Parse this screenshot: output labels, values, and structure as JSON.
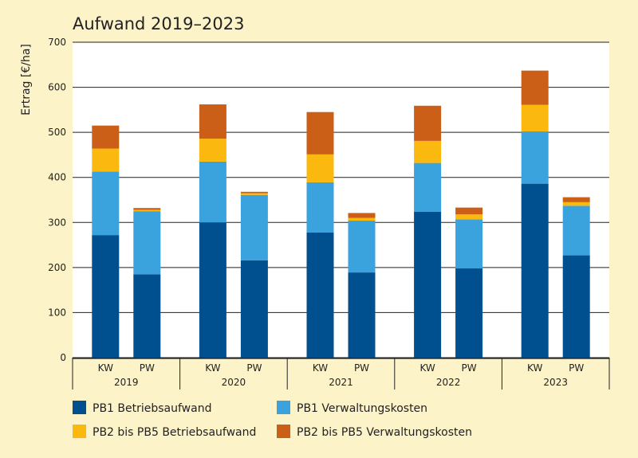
{
  "chart_data": {
    "type": "bar",
    "stacked": true,
    "title": "Aufwand 2019–2023",
    "ylabel": "Ertrag [€/ha]",
    "xlabel": "",
    "ylim": [
      0,
      700
    ],
    "yticks": [
      0,
      100,
      200,
      300,
      400,
      500,
      600,
      700
    ],
    "grid": true,
    "legend_position": "bottom",
    "groups": [
      "2019",
      "2020",
      "2021",
      "2022",
      "2023"
    ],
    "subcategories": [
      "KW",
      "PW"
    ],
    "series": [
      {
        "name": "PB1 Betriebsaufwand",
        "color": "#00508f",
        "values": [
          272,
          185,
          300,
          216,
          278,
          189,
          324,
          198,
          386,
          227
        ]
      },
      {
        "name": "PB1 Verwaltungskosten",
        "color": "#3aa2dc",
        "values": [
          141,
          140,
          135,
          145,
          111,
          115,
          108,
          109,
          116,
          110
        ]
      },
      {
        "name": "PB2 bis PB5 Betriebsaufwand",
        "color": "#fbb90f",
        "values": [
          51,
          3,
          51,
          4,
          62,
          6,
          49,
          11,
          59,
          8
        ]
      },
      {
        "name": "PB2 bis PB5 Verwaltungskosten",
        "color": "#cc5f17",
        "values": [
          51,
          4,
          76,
          3,
          94,
          11,
          78,
          15,
          76,
          11
        ]
      }
    ]
  }
}
